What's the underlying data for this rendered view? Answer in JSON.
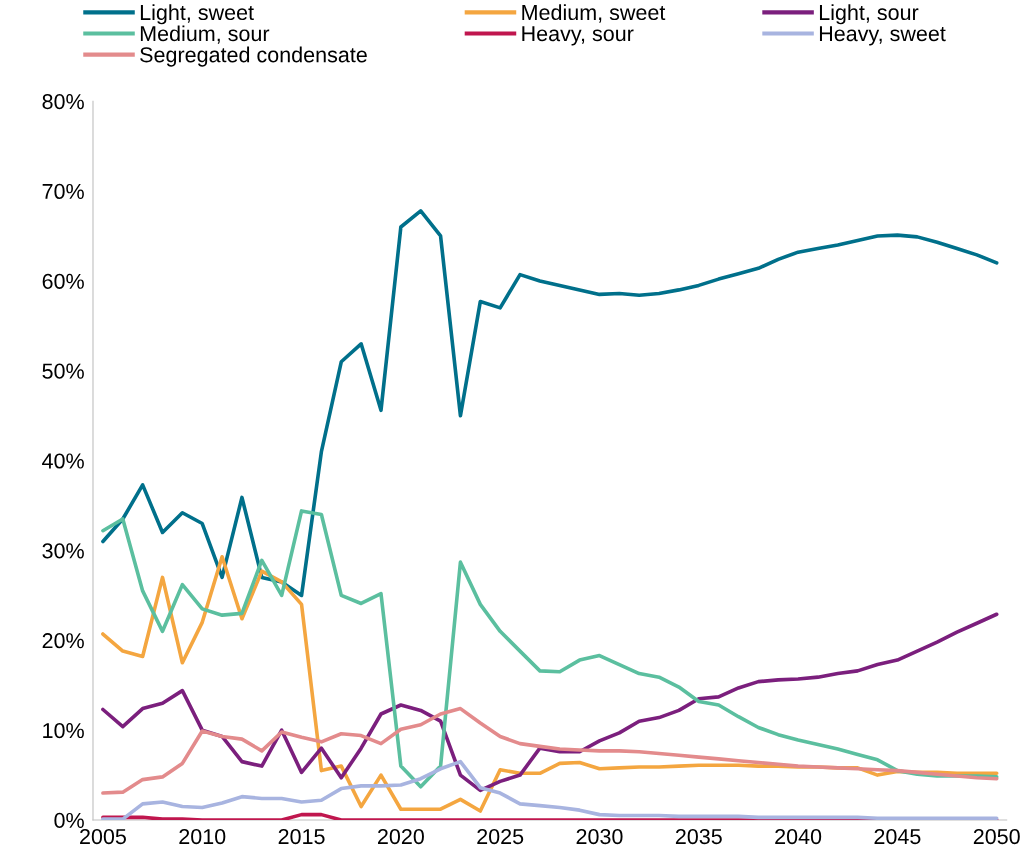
{
  "chart_data": {
    "type": "line",
    "x": [
      2005,
      2006,
      2007,
      2008,
      2009,
      2010,
      2011,
      2012,
      2013,
      2014,
      2015,
      2016,
      2017,
      2018,
      2019,
      2020,
      2021,
      2022,
      2023,
      2024,
      2025,
      2026,
      2027,
      2028,
      2029,
      2030,
      2031,
      2032,
      2033,
      2034,
      2035,
      2036,
      2037,
      2038,
      2039,
      2040,
      2041,
      2042,
      2043,
      2044,
      2045,
      2046,
      2047,
      2048,
      2049,
      2050
    ],
    "series": [
      {
        "name": "Light, sweet",
        "color": "#00708b",
        "values": [
          31,
          33.5,
          37.3,
          32,
          34.2,
          33,
          27,
          35.9,
          27,
          26.5,
          25,
          41,
          51,
          53,
          45.6,
          66,
          67.8,
          65,
          45,
          57.7,
          57,
          60.7,
          60,
          59.5,
          59,
          58.5,
          58.6,
          58.4,
          58.6,
          59,
          59.5,
          60.2,
          60.8,
          61.4,
          62.4,
          63.2,
          63.6,
          64,
          64.5,
          65,
          65.1,
          64.9,
          64.3,
          63.6,
          62.9,
          62
        ]
      },
      {
        "name": "Medium, sweet",
        "color": "#f4a640",
        "values": [
          20.7,
          18.8,
          18.2,
          27,
          17.5,
          22,
          29.3,
          22.4,
          27.7,
          26.5,
          24,
          5.5,
          6,
          1.5,
          5,
          1.2,
          1.2,
          1.2,
          2.3,
          1,
          5.6,
          5.2,
          5.2,
          6.3,
          6.4,
          5.7,
          5.8,
          5.9,
          5.9,
          6,
          6.1,
          6.1,
          6.1,
          6,
          6,
          5.9,
          5.9,
          5.8,
          5.8,
          5,
          5.4,
          5.3,
          5.3,
          5.2,
          5.2,
          5.2
        ]
      },
      {
        "name": "Light, sour",
        "color": "#7b1f7d",
        "values": [
          12.3,
          10.4,
          12.4,
          13,
          14.4,
          10,
          9.3,
          6.5,
          6,
          10,
          5.3,
          8,
          4.7,
          8,
          11.8,
          12.8,
          12.2,
          11,
          5,
          3.3,
          4.3,
          5,
          8,
          7.6,
          7.6,
          8.8,
          9.7,
          11,
          11.4,
          12.2,
          13.5,
          13.7,
          14.7,
          15.4,
          15.6,
          15.7,
          15.9,
          16.3,
          16.6,
          17.3,
          17.8,
          18.8,
          19.8,
          20.9,
          21.9,
          22.9
        ]
      },
      {
        "name": "Medium, sour",
        "color": "#5bbf9f",
        "values": [
          32.2,
          33.5,
          25.5,
          21,
          26.2,
          23.5,
          22.8,
          23,
          28.9,
          25,
          34.4,
          34,
          25,
          24.1,
          25.2,
          6,
          3.7,
          6,
          28.7,
          24,
          21,
          18.8,
          16.6,
          16.5,
          17.8,
          18.3,
          17.3,
          16.3,
          15.9,
          14.8,
          13.2,
          12.8,
          11.5,
          10.3,
          9.5,
          8.9,
          8.4,
          7.9,
          7.3,
          6.7,
          5.5,
          5.1,
          4.9,
          4.9,
          4.9,
          4.8
        ]
      },
      {
        "name": "Heavy, sour",
        "color": "#c0164e",
        "values": [
          0.3,
          0.3,
          0.3,
          0.1,
          0.1,
          0,
          0,
          0,
          0,
          0,
          0.6,
          0.6,
          0,
          0,
          0,
          0,
          0,
          0,
          0,
          0,
          0,
          0,
          0,
          0,
          0,
          0,
          0,
          0,
          0,
          0,
          0,
          0,
          0,
          0,
          0,
          0,
          0,
          0,
          0,
          0,
          0,
          0,
          0,
          0,
          0,
          0
        ]
      },
      {
        "name": "Heavy, sweet",
        "color": "#a8b4e0",
        "values": [
          0.1,
          0.1,
          1.8,
          2,
          1.5,
          1.4,
          1.9,
          2.6,
          2.4,
          2.4,
          2,
          2.2,
          3.5,
          3.8,
          3.8,
          3.9,
          4.6,
          5.7,
          6.5,
          3.6,
          3,
          1.8,
          1.6,
          1.4,
          1.1,
          0.6,
          0.5,
          0.5,
          0.5,
          0.4,
          0.4,
          0.4,
          0.4,
          0.3,
          0.3,
          0.3,
          0.3,
          0.3,
          0.3,
          0.2,
          0.2,
          0.2,
          0.2,
          0.2,
          0.2,
          0.2
        ]
      },
      {
        "name": "Segregated condensate",
        "color": "#e38b8c",
        "values": [
          3,
          3.1,
          4.5,
          4.8,
          6.3,
          9.9,
          9.3,
          9,
          7.7,
          9.8,
          9.2,
          8.7,
          9.6,
          9.4,
          8.5,
          10.1,
          10.6,
          11.8,
          12.4,
          10.8,
          9.3,
          8.5,
          8.2,
          7.9,
          7.8,
          7.7,
          7.7,
          7.6,
          7.4,
          7.2,
          7,
          6.8,
          6.6,
          6.4,
          6.2,
          6,
          5.9,
          5.8,
          5.7,
          5.6,
          5.5,
          5.3,
          5.1,
          4.9,
          4.7,
          4.6
        ]
      }
    ],
    "xlim": [
      2004.5,
      2050.5
    ],
    "xticks": [
      2005,
      2010,
      2015,
      2020,
      2025,
      2030,
      2035,
      2040,
      2045,
      2050
    ],
    "ylim": [
      0,
      80
    ],
    "yticks": [
      {
        "value": 0,
        "label": "0%"
      },
      {
        "value": 10,
        "label": "10%"
      },
      {
        "value": 20,
        "label": "20%"
      },
      {
        "value": 30,
        "label": "30%"
      },
      {
        "value": 40,
        "label": "40%"
      },
      {
        "value": 50,
        "label": "50%"
      },
      {
        "value": 60,
        "label": "60%"
      },
      {
        "value": 70,
        "label": "70%"
      },
      {
        "value": 80,
        "label": "80%"
      }
    ],
    "grid": false,
    "legend": "top",
    "marker": "none",
    "line_style": "solid"
  }
}
